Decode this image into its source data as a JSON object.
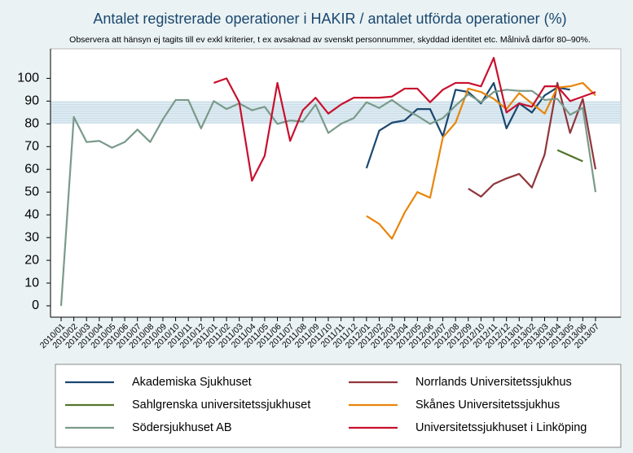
{
  "chart_data": {
    "type": "line",
    "title": "Antalet registrerade operationer i HAKIR / antalet utförda operationer (%)",
    "subtitle": "Observera att hänsyn ej tagits till ev exkl kriterier, t ex avsaknad av svenskt personnummer, skyddad identitet etc. Målnivå därför 80–90%.",
    "categories": [
      "2010/01",
      "2010/02",
      "2010/03",
      "2010/04",
      "2010/05",
      "2010/06",
      "2010/07",
      "2010/08",
      "2010/09",
      "2010/10",
      "2010/11",
      "2010/12",
      "2011/01",
      "2011/02",
      "2011/03",
      "2011/04",
      "2011/05",
      "2011/06",
      "2011/07",
      "2011/08",
      "2011/09",
      "2011/10",
      "2011/11",
      "2011/12",
      "2012/01",
      "2012/02",
      "2012/03",
      "2012/04",
      "2012/05",
      "2012/06",
      "2012/07",
      "2012/08",
      "2012/09",
      "2012/10",
      "2012/11",
      "2012/12",
      "2013/01",
      "2013/02",
      "2013/03",
      "2013/04",
      "2013/05",
      "2013/06",
      "2013/07"
    ],
    "series": [
      {
        "name": "Akademiska Sjukhuset",
        "color": "#1a476f",
        "values": [
          null,
          null,
          null,
          null,
          null,
          null,
          null,
          null,
          null,
          null,
          null,
          null,
          null,
          null,
          null,
          null,
          null,
          null,
          null,
          null,
          null,
          null,
          null,
          null,
          60.5,
          77,
          80.5,
          81.5,
          86.5,
          86.5,
          74.5,
          95,
          94,
          89,
          98,
          78,
          89,
          85,
          92.5,
          96,
          95,
          null,
          null
        ]
      },
      {
        "name": "Norrlands Universitetssjukhus",
        "color": "#90353b",
        "values": [
          null,
          null,
          null,
          null,
          null,
          null,
          null,
          null,
          null,
          null,
          null,
          null,
          null,
          null,
          null,
          null,
          null,
          null,
          null,
          null,
          null,
          null,
          null,
          null,
          null,
          null,
          null,
          null,
          null,
          null,
          null,
          null,
          51.5,
          48,
          53.5,
          56,
          58,
          52,
          66.5,
          98,
          76,
          91,
          60
        ]
      },
      {
        "name": "Sahlgrenska universitetssjukhuset",
        "color": "#55752f",
        "values": [
          null,
          null,
          null,
          null,
          null,
          null,
          null,
          null,
          null,
          null,
          null,
          null,
          null,
          null,
          null,
          null,
          null,
          null,
          null,
          null,
          null,
          null,
          null,
          null,
          null,
          null,
          null,
          null,
          null,
          null,
          null,
          null,
          null,
          null,
          null,
          null,
          null,
          null,
          null,
          68.5,
          66,
          63.5,
          null
        ]
      },
      {
        "name": "Skånes Universitetssjukhus",
        "color": "#e8850b",
        "values": [
          null,
          null,
          null,
          null,
          null,
          null,
          null,
          null,
          null,
          null,
          null,
          null,
          null,
          null,
          null,
          null,
          null,
          null,
          null,
          null,
          null,
          null,
          null,
          null,
          39.5,
          36,
          29.5,
          41,
          50,
          47.5,
          74,
          80.5,
          95.5,
          94,
          91,
          86.5,
          93.5,
          89,
          84.5,
          96,
          96.5,
          98,
          92.5
        ]
      },
      {
        "name": "Södersjukhuset AB",
        "color": "#7a9a8a",
        "values": [
          0,
          83,
          72,
          72.5,
          69.5,
          72,
          77.5,
          72,
          82,
          90.5,
          90.5,
          78,
          90,
          86.5,
          89,
          86,
          87.5,
          80,
          81.5,
          81,
          88.5,
          76,
          80,
          82.5,
          89.5,
          87,
          90.5,
          86.5,
          83.5,
          80,
          82.5,
          88,
          93,
          89.5,
          94,
          95,
          94.5,
          94.5,
          90.5,
          91,
          84,
          87,
          50
        ]
      },
      {
        "name": "Universitetssjukhuset i Linköping",
        "color": "#c8102e",
        "values": [
          null,
          null,
          null,
          null,
          null,
          null,
          null,
          null,
          null,
          null,
          null,
          null,
          98,
          100,
          89.5,
          55,
          66,
          98,
          72.5,
          86,
          91.5,
          84.5,
          88.5,
          91.5,
          91.5,
          91.5,
          92,
          95.5,
          95.5,
          89.5,
          95,
          98,
          98,
          96.5,
          109,
          85,
          89,
          87.5,
          96.5,
          96.5,
          90,
          92,
          94
        ]
      }
    ],
    "ylim": [
      -5,
      113
    ],
    "yticks": [
      0,
      10,
      20,
      30,
      40,
      50,
      60,
      70,
      80,
      90,
      100
    ],
    "target_band": [
      80,
      90
    ]
  }
}
